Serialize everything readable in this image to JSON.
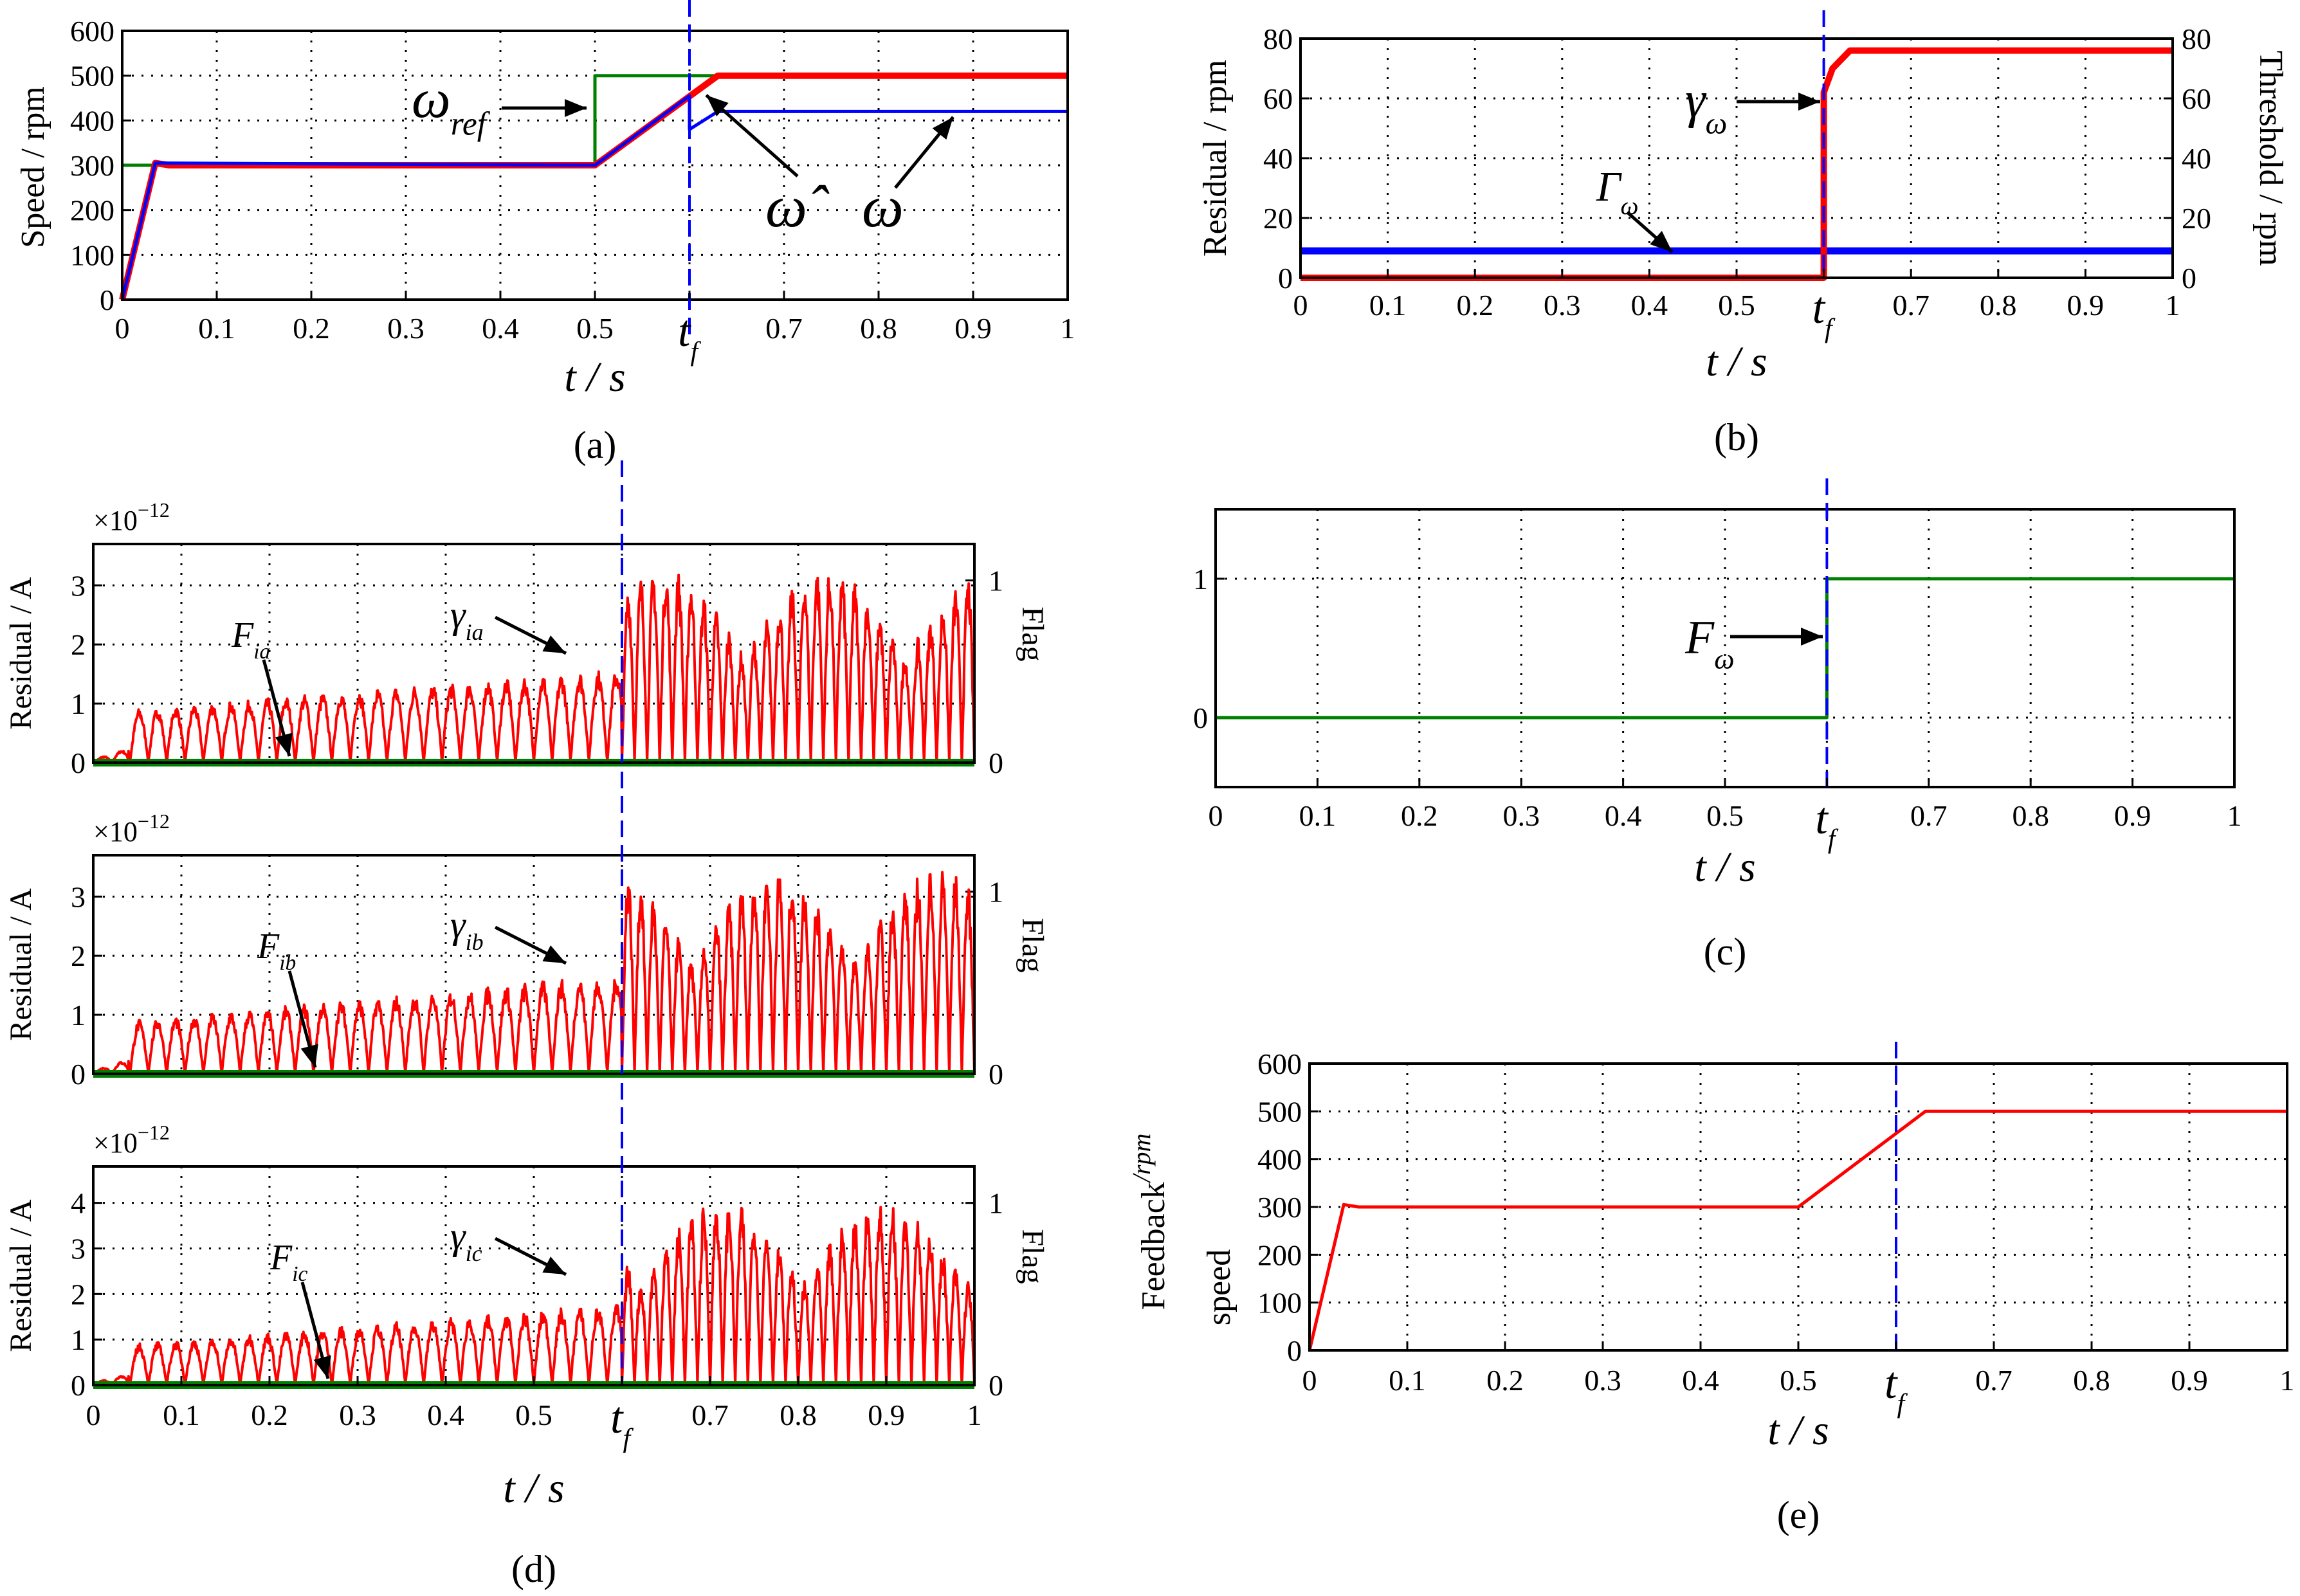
{
  "chart_data": [
    {
      "id": "a",
      "type": "line",
      "panel_label": "(a)",
      "xlabel": "t / s",
      "ylabel": "Speed / rpm",
      "xticks": [
        "0",
        "0.1",
        "0.2",
        "0.3",
        "0.4",
        "0.5",
        "tf",
        "0.7",
        "0.8",
        "0.9",
        "1"
      ],
      "yticks": [
        "0",
        "100",
        "200",
        "300",
        "400",
        "500",
        "600"
      ],
      "xlim": [
        0,
        1
      ],
      "ylim": [
        0,
        600
      ],
      "grid": true,
      "fault_time": 0.6,
      "series": [
        {
          "key": "ref",
          "color": "#008000",
          "x": [
            0,
            0.04,
            0.5,
            0.5,
            1
          ],
          "y": [
            300,
            300,
            300,
            500,
            500
          ]
        },
        {
          "key": "est",
          "color": "#ff0000",
          "x": [
            0,
            0.035,
            0.05,
            0.25,
            0.5,
            0.63,
            1
          ],
          "y": [
            0,
            305,
            300,
            300,
            300,
            500,
            500
          ]
        },
        {
          "key": "actual",
          "color": "#0000ff",
          "x": [
            0,
            0.035,
            0.5,
            0.6,
            0.6,
            0.63,
            1
          ],
          "y": [
            0,
            305,
            300,
            455,
            380,
            420,
            420
          ]
        }
      ],
      "annotations": [
        {
          "main": "ω",
          "sub": "ref"
        },
        {
          "main": "ω̂",
          "sub": ""
        },
        {
          "main": "ω",
          "sub": ""
        }
      ],
      "tf_label": {
        "main": "t",
        "sub": "f"
      }
    },
    {
      "id": "b",
      "type": "line",
      "panel_label": "(b)",
      "xlabel": "t / s",
      "ylabel": "Residual / rpm",
      "ylabel_right": "Threshold / rpm",
      "xticks": [
        "0",
        "0.1",
        "0.2",
        "0.3",
        "0.4",
        "0.5",
        "tf",
        "0.7",
        "0.8",
        "0.9",
        "1"
      ],
      "yticks": [
        "0",
        "20",
        "40",
        "60",
        "80"
      ],
      "yticks_right": [
        "0",
        "20",
        "40",
        "60",
        "80"
      ],
      "xlim": [
        0,
        1
      ],
      "ylim": [
        0,
        80
      ],
      "grid": true,
      "fault_time": 0.6,
      "series": [
        {
          "key": "residual",
          "color": "#ff0000",
          "x": [
            0,
            0.6,
            0.6,
            0.61,
            0.63,
            1
          ],
          "y": [
            0,
            0,
            62,
            70,
            76,
            76
          ]
        },
        {
          "key": "threshold",
          "color": "#0000ff",
          "x": [
            0,
            1
          ],
          "y": [
            9,
            9
          ]
        }
      ],
      "annotations": [
        {
          "main": "γ",
          "sub": "ω"
        },
        {
          "main": "Γ",
          "sub": "ω"
        }
      ],
      "tf_label": {
        "main": "t",
        "sub": "f"
      }
    },
    {
      "id": "d",
      "type": "line",
      "panel_label": "(d)",
      "xlabel": "t / s",
      "ylabel": "Residual / A",
      "ylabel_right": "Flag",
      "exponent": "×10",
      "exponent_power": "−12",
      "xticks": [
        "0",
        "0.1",
        "0.2",
        "0.3",
        "0.4",
        "0.5",
        "tf",
        "0.7",
        "0.8",
        "0.9",
        "1"
      ],
      "xlim": [
        0,
        1
      ],
      "grid": true,
      "fault_time": 0.6,
      "subplots": [
        {
          "key": "ia",
          "yticks": [
            "0",
            "1",
            "2",
            "3"
          ],
          "ylim": [
            0,
            3.7
          ],
          "residual_name": {
            "main": "γ",
            "sub": "ia"
          },
          "flag_name": {
            "main": "F",
            "sub": "ia"
          },
          "peak_pre": 1.6,
          "peak_post": 3.3,
          "right_ticks": [
            "0",
            "1"
          ],
          "right_max": 1.2
        },
        {
          "key": "ib",
          "yticks": [
            "0",
            "1",
            "2",
            "3"
          ],
          "ylim": [
            0,
            3.7
          ],
          "residual_name": {
            "main": "γ",
            "sub": "ib"
          },
          "flag_name": {
            "main": "F",
            "sub": "ib"
          },
          "peak_pre": 1.7,
          "peak_post": 3.5,
          "right_ticks": [
            "0",
            "1"
          ],
          "right_max": 1.2
        },
        {
          "key": "ic",
          "yticks": [
            "0",
            "1",
            "2",
            "3",
            "4"
          ],
          "ylim": [
            0,
            4.8
          ],
          "residual_name": {
            "main": "γ",
            "sub": "ic"
          },
          "flag_name": {
            "main": "F",
            "sub": "ic"
          },
          "peak_pre": 1.8,
          "peak_post": 4.1,
          "right_ticks": [
            "0",
            "1"
          ],
          "right_max": 1.2
        }
      ],
      "tf_label": {
        "main": "t",
        "sub": "f"
      }
    },
    {
      "id": "c",
      "type": "line",
      "panel_label": "(c)",
      "xlabel": "t / s",
      "xticks": [
        "0",
        "0.1",
        "0.2",
        "0.3",
        "0.4",
        "0.5",
        "tf",
        "0.7",
        "0.8",
        "0.9",
        "1"
      ],
      "yticks": [
        "0",
        "1"
      ],
      "xlim": [
        0,
        1
      ],
      "ylim": [
        -0.5,
        1.5
      ],
      "grid": true,
      "fault_time": 0.6,
      "series": [
        {
          "key": "flag",
          "color": "#008000",
          "x": [
            0,
            0.6,
            0.6,
            1
          ],
          "y": [
            0,
            0,
            1,
            1
          ]
        }
      ],
      "annotations": [
        {
          "main": "F",
          "sub": "ω"
        }
      ],
      "tf_label": {
        "main": "t",
        "sub": "f"
      }
    },
    {
      "id": "e",
      "type": "line",
      "panel_label": "(e)",
      "xlabel": "t / s",
      "ylabel": "Feedback",
      "ylabel_unit": "/rpm",
      "ylabel_second": "speed",
      "xticks": [
        "0",
        "0.1",
        "0.2",
        "0.3",
        "0.4",
        "0.5",
        "tf",
        "0.7",
        "0.8",
        "0.9",
        "1"
      ],
      "yticks": [
        "0",
        "100",
        "200",
        "300",
        "400",
        "500",
        "600"
      ],
      "xlim": [
        0,
        1
      ],
      "ylim": [
        0,
        600
      ],
      "grid": true,
      "fault_time": 0.6,
      "series": [
        {
          "key": "feedback",
          "color": "#ff0000",
          "x": [
            0,
            0.035,
            0.05,
            0.5,
            0.63,
            1
          ],
          "y": [
            0,
            305,
            300,
            300,
            500,
            500
          ]
        }
      ],
      "tf_label": {
        "main": "t",
        "sub": "f"
      }
    }
  ]
}
